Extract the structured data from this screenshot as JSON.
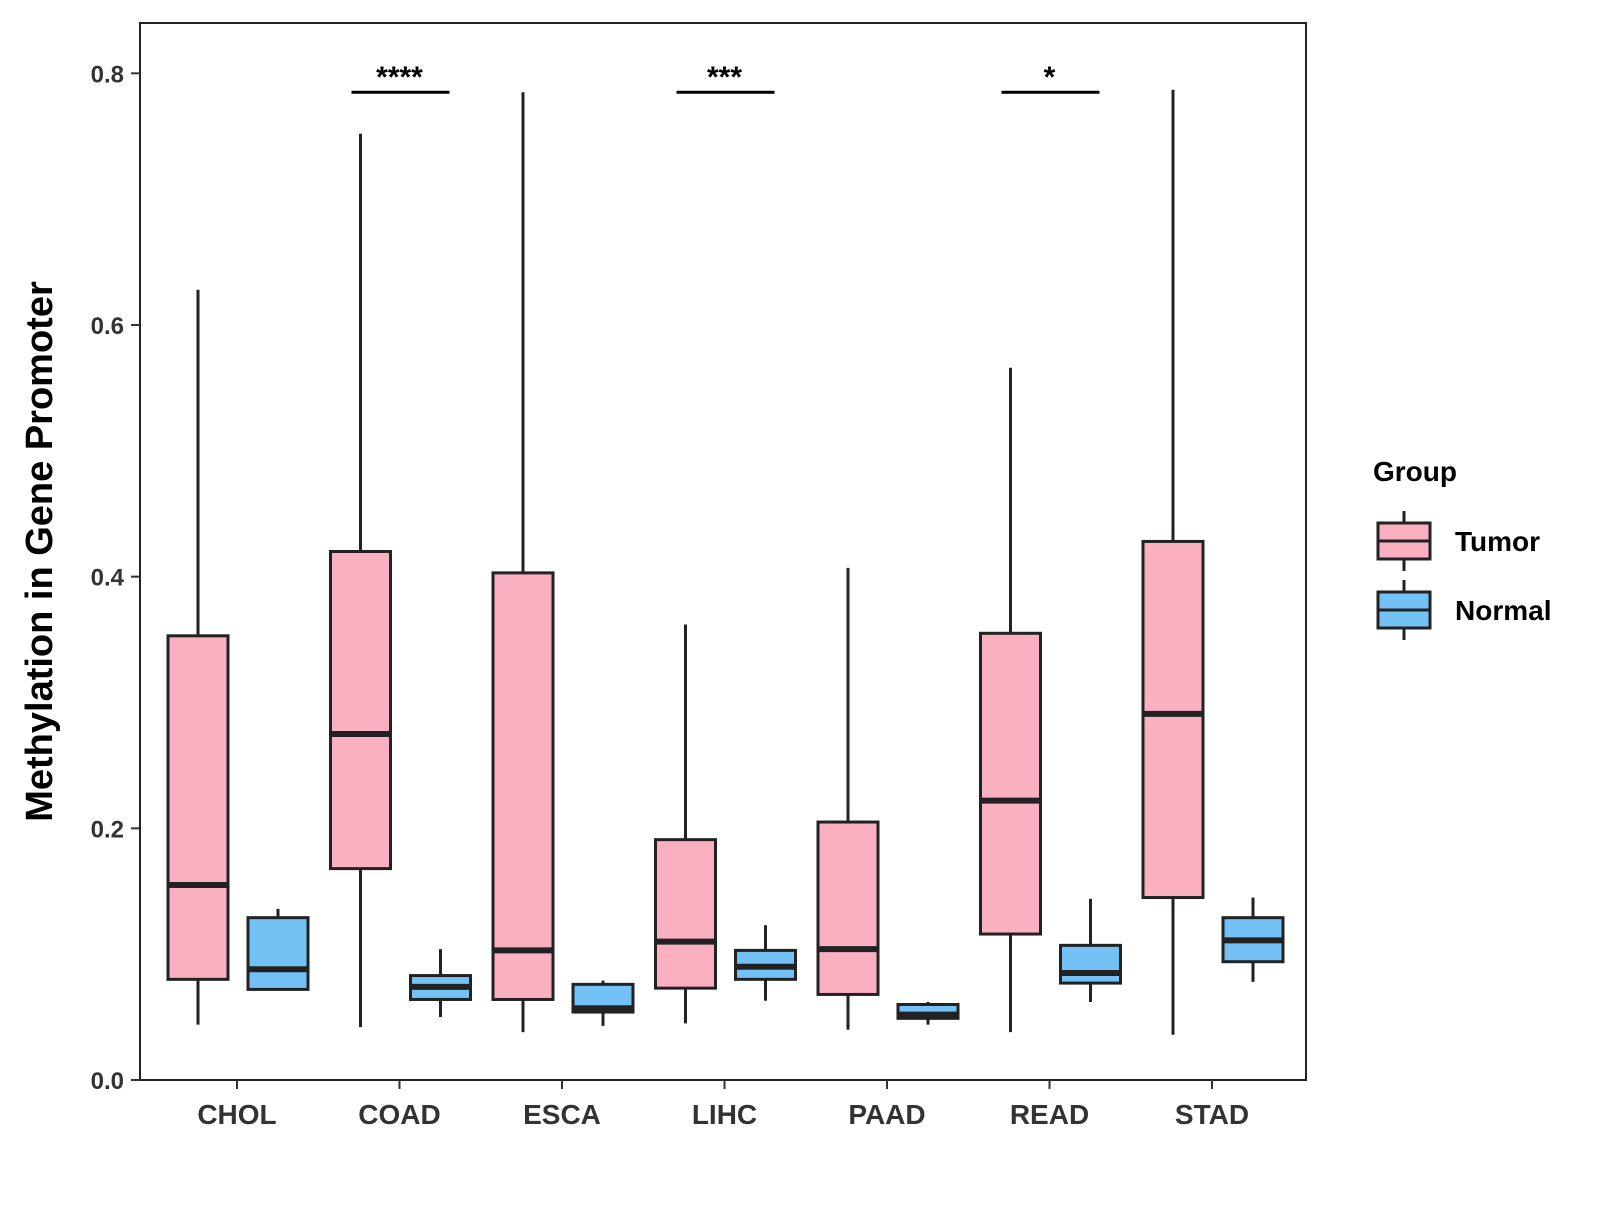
{
  "chart_data": {
    "type": "boxplot",
    "ylabel": "Methylation in Gene Promoter",
    "xlabel": "",
    "ylim": [
      0,
      0.84
    ],
    "yticks": [
      0.0,
      0.2,
      0.4,
      0.6,
      0.8
    ],
    "ytick_labels": [
      "0.0",
      "0.2",
      "0.4",
      "0.6",
      "0.8"
    ],
    "categories": [
      "CHOL",
      "COAD",
      "ESCA",
      "LIHC",
      "PAAD",
      "READ",
      "STAD"
    ],
    "legend": {
      "title": "Group",
      "placement": "right",
      "entries": [
        {
          "name": "Tumor",
          "color": "#FBB0C2"
        },
        {
          "name": "Normal",
          "color": "#74C1F6"
        }
      ]
    },
    "series": [
      {
        "name": "Tumor",
        "color": "#FBB0C2",
        "boxes": [
          {
            "category": "CHOL",
            "min": 0.044,
            "q1": 0.08,
            "median": 0.155,
            "q3": 0.353,
            "max": 0.628
          },
          {
            "category": "COAD",
            "min": 0.042,
            "q1": 0.168,
            "median": 0.275,
            "q3": 0.42,
            "max": 0.752
          },
          {
            "category": "ESCA",
            "min": 0.038,
            "q1": 0.064,
            "median": 0.103,
            "q3": 0.403,
            "max": 0.785
          },
          {
            "category": "LIHC",
            "min": 0.045,
            "q1": 0.073,
            "median": 0.11,
            "q3": 0.191,
            "max": 0.362
          },
          {
            "category": "PAAD",
            "min": 0.04,
            "q1": 0.068,
            "median": 0.104,
            "q3": 0.205,
            "max": 0.407
          },
          {
            "category": "READ",
            "min": 0.038,
            "q1": 0.116,
            "median": 0.222,
            "q3": 0.355,
            "max": 0.566
          },
          {
            "category": "STAD",
            "min": 0.036,
            "q1": 0.145,
            "median": 0.291,
            "q3": 0.428,
            "max": 0.787
          }
        ]
      },
      {
        "name": "Normal",
        "color": "#74C1F6",
        "boxes": [
          {
            "category": "CHOL",
            "min": 0.072,
            "q1": 0.072,
            "median": 0.088,
            "q3": 0.129,
            "max": 0.136
          },
          {
            "category": "COAD",
            "min": 0.05,
            "q1": 0.064,
            "median": 0.074,
            "q3": 0.083,
            "max": 0.104
          },
          {
            "category": "ESCA",
            "min": 0.043,
            "q1": 0.054,
            "median": 0.057,
            "q3": 0.076,
            "max": 0.079
          },
          {
            "category": "LIHC",
            "min": 0.063,
            "q1": 0.08,
            "median": 0.09,
            "q3": 0.103,
            "max": 0.123
          },
          {
            "category": "PAAD",
            "min": 0.044,
            "q1": 0.049,
            "median": 0.052,
            "q3": 0.06,
            "max": 0.062
          },
          {
            "category": "READ",
            "min": 0.062,
            "q1": 0.077,
            "median": 0.085,
            "q3": 0.107,
            "max": 0.144
          },
          {
            "category": "STAD",
            "min": 0.078,
            "q1": 0.094,
            "median": 0.111,
            "q3": 0.129,
            "max": 0.145
          }
        ]
      }
    ],
    "annotations": [
      {
        "category": "COAD",
        "label": "****",
        "y": 0.785
      },
      {
        "category": "LIHC",
        "label": "***",
        "y": 0.785
      },
      {
        "category": "READ",
        "label": "*",
        "y": 0.785
      }
    ]
  }
}
